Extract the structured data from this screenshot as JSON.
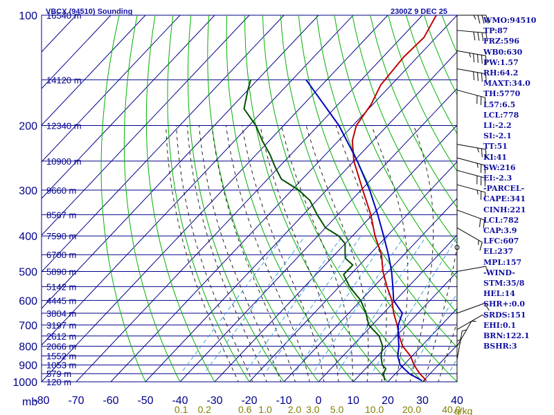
{
  "colors": {
    "background": "#ffffff",
    "grid": "#00008b",
    "dry_adiabat": "#00b000",
    "moist_adiabat": "#222222",
    "mixing_ratio": "#3a9fd6",
    "temperature": "#c00000",
    "dewpoint": "#005000",
    "parcel": "#0000c0",
    "text": "#1010a0",
    "mixing_label": "#808000"
  },
  "chart_data": {
    "type": "skew-t",
    "title": "VBCX (94510) Sounding",
    "time_label": "2300Z  9 DEC 25",
    "y_unit": "mb",
    "mixing_ratio_unit": "g/kg",
    "pressure_ticks": [
      100,
      200,
      300,
      400,
      500,
      600,
      700,
      800,
      900,
      1000
    ],
    "pressure_range": [
      100,
      1000
    ],
    "temperature_ticks": [
      -80,
      -70,
      -60,
      -50,
      -40,
      -30,
      -20,
      -10,
      0,
      10,
      20,
      30,
      40
    ],
    "temperature_range_at_bottom": [
      -80,
      40
    ],
    "skew_degC_per_decade": 100,
    "height_labels": [
      {
        "p": 100,
        "label": "16540 m"
      },
      {
        "p": 150,
        "label": "14120 m"
      },
      {
        "p": 200,
        "label": "12340 m"
      },
      {
        "p": 250,
        "label": "10900 m"
      },
      {
        "p": 300,
        "label": "9660 m"
      },
      {
        "p": 350,
        "label": "8567 m"
      },
      {
        "p": 400,
        "label": "7590 m"
      },
      {
        "p": 450,
        "label": "6700 m"
      },
      {
        "p": 500,
        "label": "5890 m"
      },
      {
        "p": 550,
        "label": "5142 m"
      },
      {
        "p": 600,
        "label": "4445 m"
      },
      {
        "p": 650,
        "label": "3804 m"
      },
      {
        "p": 700,
        "label": "3197 m"
      },
      {
        "p": 750,
        "label": "2612 m"
      },
      {
        "p": 800,
        "label": "2066 m"
      },
      {
        "p": 850,
        "label": "1552 m"
      },
      {
        "p": 900,
        "label": "1053 m"
      },
      {
        "p": 950,
        "label": "579 m"
      },
      {
        "p": 1000,
        "label": "120 m"
      }
    ],
    "mixing_ratio_lines": [
      {
        "w": 0.1,
        "label": "0.1"
      },
      {
        "w": 0.2,
        "label": "0.2"
      },
      {
        "w": 0.6,
        "label": "0.6"
      },
      {
        "w": 1.0,
        "label": "1.0"
      },
      {
        "w": 2.0,
        "label": "2.0"
      },
      {
        "w": 3.0,
        "label": "3.0"
      },
      {
        "w": 5.0,
        "label": "5.0"
      },
      {
        "w": 10.0,
        "label": "10.0"
      },
      {
        "w": 20.0,
        "label": "20.0"
      },
      {
        "w": 40.0,
        "label": "40.0"
      }
    ],
    "series": [
      {
        "name": "temperature",
        "points": [
          {
            "p": 992,
            "t": 30.8
          },
          {
            "p": 950,
            "t": 27.0
          },
          {
            "p": 900,
            "t": 23.0
          },
          {
            "p": 850,
            "t": 19.5
          },
          {
            "p": 800,
            "t": 14.6
          },
          {
            "p": 750,
            "t": 10.8
          },
          {
            "p": 700,
            "t": 7.2
          },
          {
            "p": 650,
            "t": 3.0
          },
          {
            "p": 600,
            "t": -1.0
          },
          {
            "p": 550,
            "t": -6.2
          },
          {
            "p": 500,
            "t": -11.5
          },
          {
            "p": 450,
            "t": -16.5
          },
          {
            "p": 400,
            "t": -23.5
          },
          {
            "p": 350,
            "t": -30.5
          },
          {
            "p": 300,
            "t": -39.5
          },
          {
            "p": 250,
            "t": -50.0
          },
          {
            "p": 220,
            "t": -56.0
          },
          {
            "p": 200,
            "t": -59.0
          },
          {
            "p": 175,
            "t": -60.5
          },
          {
            "p": 155,
            "t": -63.0
          },
          {
            "p": 130,
            "t": -64.0
          },
          {
            "p": 115,
            "t": -63.5
          },
          {
            "p": 100,
            "t": -66.0
          }
        ]
      },
      {
        "name": "dewpoint",
        "points": [
          {
            "p": 992,
            "t": 18.8
          },
          {
            "p": 950,
            "t": 16.5
          },
          {
            "p": 920,
            "t": 15.8
          },
          {
            "p": 900,
            "t": 13.8
          },
          {
            "p": 850,
            "t": 11.0
          },
          {
            "p": 800,
            "t": 8.8
          },
          {
            "p": 750,
            "t": 5.0
          },
          {
            "p": 700,
            "t": -1.0
          },
          {
            "p": 650,
            "t": -5.0
          },
          {
            "p": 600,
            "t": -10.0
          },
          {
            "p": 550,
            "t": -17.0
          },
          {
            "p": 510,
            "t": -22.0
          },
          {
            "p": 480,
            "t": -22.0
          },
          {
            "p": 460,
            "t": -26.0
          },
          {
            "p": 440,
            "t": -28.0
          },
          {
            "p": 420,
            "t": -30.0
          },
          {
            "p": 400,
            "t": -34.0
          },
          {
            "p": 380,
            "t": -40.0
          },
          {
            "p": 350,
            "t": -46.0
          },
          {
            "p": 320,
            "t": -52.0
          },
          {
            "p": 300,
            "t": -58.0
          },
          {
            "p": 280,
            "t": -66.0
          },
          {
            "p": 260,
            "t": -71.0
          },
          {
            "p": 240,
            "t": -76.0
          },
          {
            "p": 220,
            "t": -82.0
          },
          {
            "p": 200,
            "t": -88.0
          },
          {
            "p": 180,
            "t": -96.0
          },
          {
            "p": 160,
            "t": -100.0
          },
          {
            "p": 150,
            "t": -102.0
          }
        ]
      },
      {
        "name": "parcel",
        "points": [
          {
            "p": 992,
            "t": 29.5
          },
          {
            "p": 950,
            "t": 24.0
          },
          {
            "p": 900,
            "t": 19.0
          },
          {
            "p": 850,
            "t": 15.8
          },
          {
            "p": 800,
            "t": 13.5
          },
          {
            "p": 750,
            "t": 10.5
          },
          {
            "p": 700,
            "t": 7.5
          },
          {
            "p": 650,
            "t": 5.5
          },
          {
            "p": 600,
            "t": -0.5
          },
          {
            "p": 550,
            "t": -4.5
          },
          {
            "p": 500,
            "t": -9.0
          },
          {
            "p": 450,
            "t": -14.5
          },
          {
            "p": 400,
            "t": -21.0
          },
          {
            "p": 350,
            "t": -28.5
          },
          {
            "p": 300,
            "t": -37.5
          },
          {
            "p": 250,
            "t": -49.0
          },
          {
            "p": 200,
            "t": -64.0
          },
          {
            "p": 150,
            "t": -86.0
          }
        ]
      }
    ],
    "wind_barbs": [
      {
        "p": 100,
        "dir": 270,
        "kt": 35
      },
      {
        "p": 110,
        "dir": 275,
        "kt": 40
      },
      {
        "p": 125,
        "dir": 280,
        "kt": 45
      },
      {
        "p": 140,
        "dir": 280,
        "kt": 40
      },
      {
        "p": 160,
        "dir": 285,
        "kt": 30
      },
      {
        "p": 225,
        "dir": 280,
        "kt": 25
      },
      {
        "p": 245,
        "dir": 285,
        "kt": 25
      },
      {
        "p": 265,
        "dir": 285,
        "kt": 30
      },
      {
        "p": 290,
        "dir": 285,
        "kt": 25
      },
      {
        "p": 340,
        "dir": 290,
        "kt": 20
      },
      {
        "p": 380,
        "dir": 300,
        "kt": 15
      },
      {
        "p": 500,
        "dir": 260,
        "kt": 10
      },
      {
        "p": 650,
        "dir": 250,
        "kt": 10
      },
      {
        "p": 720,
        "dir": 240,
        "kt": 5
      },
      {
        "p": 800,
        "dir": 210,
        "kt": 5
      },
      {
        "p": 870,
        "dir": 190,
        "kt": 5
      },
      {
        "p": 930,
        "dir": 180,
        "kt": 5
      }
    ],
    "indices": [
      {
        "label": "WMO:94510"
      },
      {
        "label": "TP:87"
      },
      {
        "label": "FRZ:596"
      },
      {
        "label": "WB0:630"
      },
      {
        "label": "PW:1.57"
      },
      {
        "label": "RH:64.2"
      },
      {
        "label": "MAXT:34.0"
      },
      {
        "label": "TH:5770"
      },
      {
        "label": "L57:6.5"
      },
      {
        "label": "LCL:778"
      },
      {
        "label": "LI:-2.2"
      },
      {
        "label": "SI:-2.1"
      },
      {
        "label": "TT:51"
      },
      {
        "label": "KI:41"
      },
      {
        "label": "SW:216"
      },
      {
        "label": "EI:-2.3"
      },
      {
        "label": "-PARCEL-"
      },
      {
        "label": "CAPE:341"
      },
      {
        "label": "CINH:221"
      },
      {
        "label": "LCL:782"
      },
      {
        "label": "CAP:3.9"
      },
      {
        "label": "LFC:607"
      },
      {
        "label": "EL:237"
      },
      {
        "label": "MPL:157"
      },
      {
        "label": "-WIND-"
      },
      {
        "label": "STM:35/8"
      },
      {
        "label": "HEL:14"
      },
      {
        "label": "SHR+:0.0"
      },
      {
        "label": "SRDS:151"
      },
      {
        "label": "EHI:0.1"
      },
      {
        "label": "BRN:122.1"
      },
      {
        "label": "BSHR:3"
      }
    ]
  }
}
